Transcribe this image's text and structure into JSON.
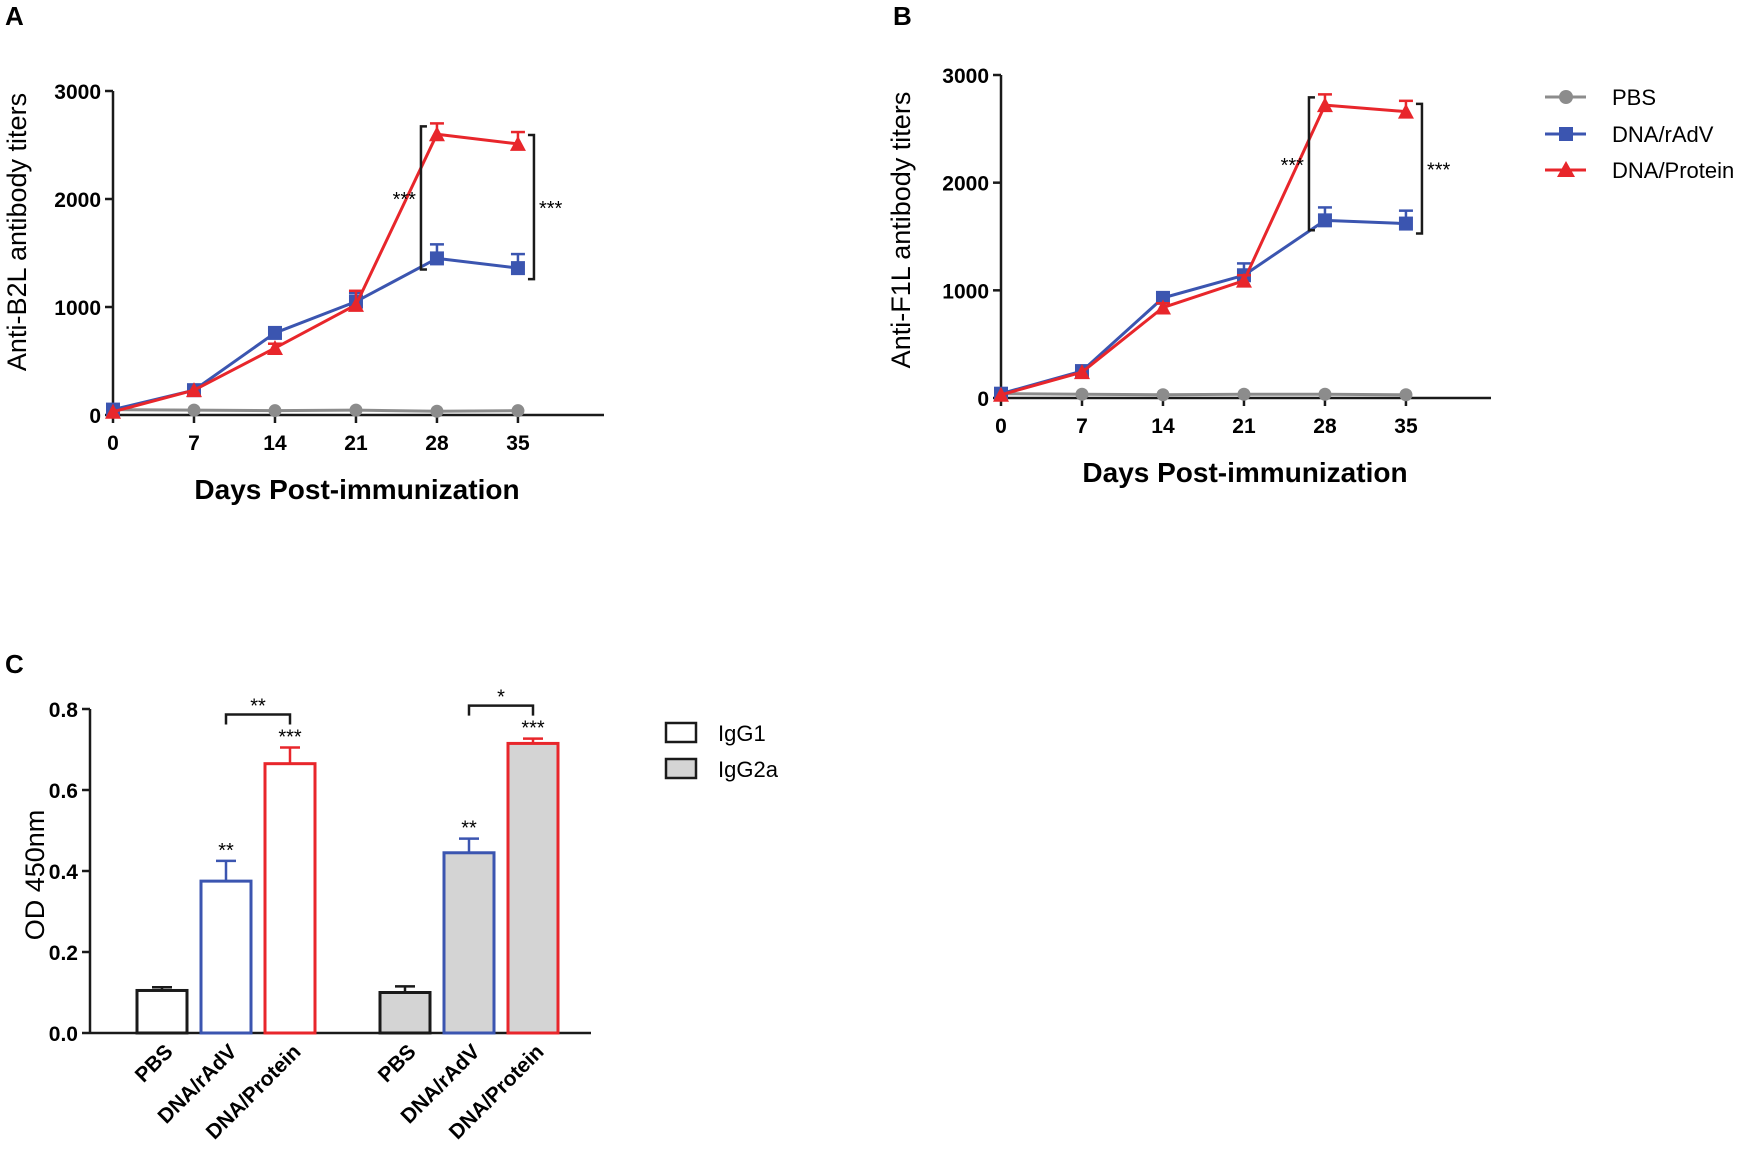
{
  "colors": {
    "pbs": "#8c8c8c",
    "dna_radv": "#3b55b0",
    "dna_protein": "#e8262b",
    "igg2a_fill": "#d4d4d4",
    "axis": "#1a1a1a"
  },
  "legend_lines": {
    "items": [
      {
        "label": "PBS",
        "series": "pbs",
        "marker": "circle"
      },
      {
        "label": "DNA/rAdV",
        "series": "dna_radv",
        "marker": "square"
      },
      {
        "label": "DNA/Protein",
        "series": "dna_protein",
        "marker": "triangle"
      }
    ]
  },
  "legend_bars": {
    "items": [
      {
        "label": "IgG1",
        "fill": "#ffffff"
      },
      {
        "label": "IgG2a",
        "fill": "#d4d4d4"
      }
    ]
  },
  "chart_data": [
    {
      "panel": "A",
      "type": "line",
      "title": "",
      "xlabel": "Days Post-immunization",
      "ylabel": "Anti-B2L antibody titers",
      "x": [
        0,
        7,
        14,
        21,
        28,
        35
      ],
      "xlim": [
        0,
        42
      ],
      "ylim": [
        0,
        3000
      ],
      "yticks": [
        0,
        1000,
        2000,
        3000
      ],
      "xticks": [
        0,
        7,
        14,
        21,
        28,
        35
      ],
      "series": [
        {
          "name": "PBS",
          "key": "pbs",
          "marker": "circle",
          "values": [
            50,
            45,
            40,
            45,
            35,
            40
          ],
          "errors": [
            0,
            0,
            0,
            0,
            0,
            0
          ]
        },
        {
          "name": "DNA/rAdV",
          "key": "dna_radv",
          "marker": "square",
          "values": [
            50,
            230,
            760,
            1050,
            1450,
            1360
          ],
          "errors": [
            0,
            0,
            40,
            80,
            130,
            130
          ]
        },
        {
          "name": "DNA/Protein",
          "key": "dna_protein",
          "marker": "triangle",
          "values": [
            30,
            230,
            620,
            1020,
            2600,
            2510
          ],
          "errors": [
            0,
            0,
            40,
            130,
            100,
            110
          ]
        }
      ],
      "significance": [
        {
          "label": "***",
          "x": 28,
          "side": "left"
        },
        {
          "label": "***",
          "x": 35,
          "side": "right"
        }
      ]
    },
    {
      "panel": "B",
      "type": "line",
      "title": "",
      "xlabel": "Days Post-immunization",
      "ylabel": "Anti-F1L antibody titers",
      "x": [
        0,
        7,
        14,
        21,
        28,
        35
      ],
      "xlim": [
        0,
        42
      ],
      "ylim": [
        0,
        3000
      ],
      "yticks": [
        0,
        1000,
        2000,
        3000
      ],
      "xticks": [
        0,
        7,
        14,
        21,
        28,
        35
      ],
      "series": [
        {
          "name": "PBS",
          "key": "pbs",
          "marker": "circle",
          "values": [
            40,
            35,
            30,
            35,
            35,
            30
          ],
          "errors": [
            0,
            0,
            0,
            0,
            0,
            0
          ]
        },
        {
          "name": "DNA/rAdV",
          "key": "dna_radv",
          "marker": "square",
          "values": [
            40,
            250,
            930,
            1140,
            1650,
            1620
          ],
          "errors": [
            0,
            50,
            40,
            110,
            120,
            120
          ]
        },
        {
          "name": "DNA/Protein",
          "key": "dna_protein",
          "marker": "triangle",
          "values": [
            30,
            240,
            840,
            1090,
            2720,
            2660
          ],
          "errors": [
            0,
            0,
            40,
            50,
            100,
            100
          ]
        }
      ],
      "significance": [
        {
          "label": "***",
          "x": 28,
          "side": "left"
        },
        {
          "label": "***",
          "x": 35,
          "side": "right"
        }
      ]
    },
    {
      "panel": "C",
      "type": "bar",
      "title": "",
      "xlabel": "",
      "ylabel": "OD 450nm",
      "ylim": [
        0,
        0.8
      ],
      "yticks": [
        "0.0",
        "0.2",
        "0.4",
        "0.6",
        "0.8"
      ],
      "categories": [
        "PBS",
        "DNA/rAdV",
        "DNA/Protein",
        "PBS",
        "DNA/rAdV",
        "DNA/Protein"
      ],
      "bars": [
        {
          "group": "IgG1",
          "category": "PBS",
          "value": 0.105,
          "error": 0.008,
          "label": ""
        },
        {
          "group": "IgG1",
          "category": "DNA/rAdV",
          "value": 0.375,
          "error": 0.05,
          "label": "**"
        },
        {
          "group": "IgG1",
          "category": "DNA/Protein",
          "value": 0.665,
          "error": 0.04,
          "label": "***"
        },
        {
          "group": "IgG2a",
          "category": "PBS",
          "value": 0.1,
          "error": 0.015,
          "label": ""
        },
        {
          "group": "IgG2a",
          "category": "DNA/rAdV",
          "value": 0.445,
          "error": 0.035,
          "label": "**"
        },
        {
          "group": "IgG2a",
          "category": "DNA/Protein",
          "value": 0.715,
          "error": 0.012,
          "label": "***"
        }
      ],
      "comparisons": [
        {
          "label": "**",
          "from": 1,
          "to": 2
        },
        {
          "label": "*",
          "from": 4,
          "to": 5
        }
      ]
    }
  ]
}
